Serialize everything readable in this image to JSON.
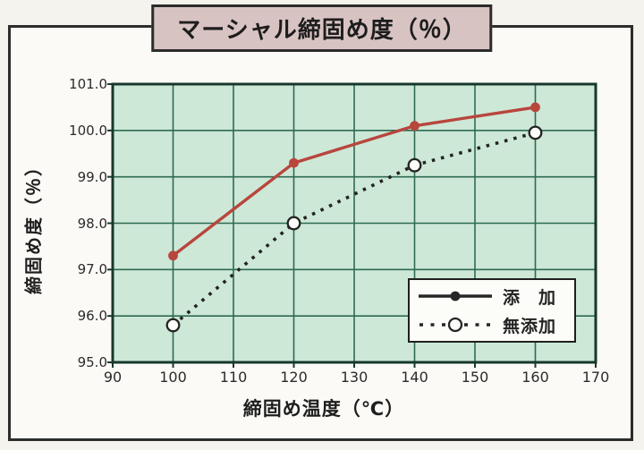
{
  "chart_data": {
    "type": "line",
    "title": "マーシャル締固め度（％）",
    "xlabel": "締固め温度（℃）",
    "ylabel": "締固め度（％）",
    "xlim": [
      90,
      170
    ],
    "ylim": [
      95.0,
      101.0
    ],
    "x_ticks": [
      90,
      100,
      110,
      120,
      130,
      140,
      150,
      160,
      170
    ],
    "y_ticks": [
      95.0,
      96.0,
      97.0,
      98.0,
      99.0,
      100.0,
      101.0
    ],
    "grid": true,
    "legend_position": "lower-right",
    "x": [
      100,
      120,
      140,
      160
    ],
    "series": [
      {
        "name": "添　加",
        "values": [
          97.3,
          99.3,
          100.1,
          100.5
        ],
        "line_style": "solid",
        "marker": "filled-circle",
        "color": "#b8463d"
      },
      {
        "name": "無添加",
        "values": [
          95.8,
          98.0,
          99.25,
          99.95
        ],
        "line_style": "dotted",
        "marker": "open-circle",
        "color": "#232323"
      }
    ]
  },
  "colors": {
    "page_bg": "#f5f3ee",
    "frame_bg": "#fbfaf6",
    "frame_border": "#2c2c2c",
    "title_box_bg": "#d8c3c3",
    "title_text": "#1d1d1d",
    "plot_bg": "#cde8d7",
    "grid_line": "#2e6a52",
    "plot_border": "#17382c",
    "tick_text": "#2b2b2b",
    "legend_bg": "#fcfcf9",
    "legend_border": "#1f1f1f",
    "legend_line": "#262626"
  }
}
